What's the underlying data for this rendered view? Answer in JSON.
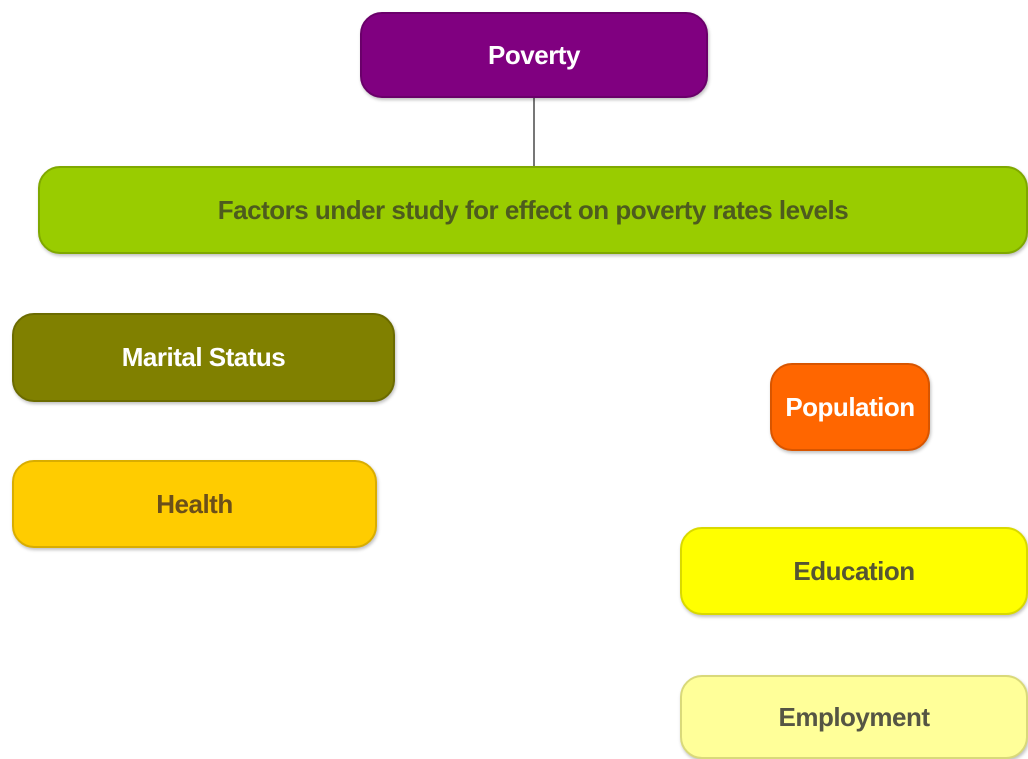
{
  "nodes": [
    {
      "label": "Poverty"
    },
    {
      "label": "Factors under study for effect on poverty rates levels"
    },
    {
      "label": "Marital Status"
    },
    {
      "label": "Population"
    },
    {
      "label": "Health"
    },
    {
      "label": "Education"
    },
    {
      "label": "Employment"
    }
  ]
}
